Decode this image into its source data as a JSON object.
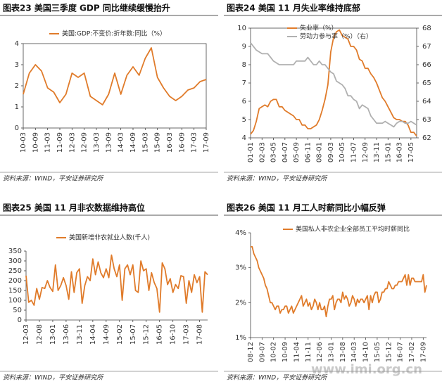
{
  "chart_data": [
    {
      "type": "line",
      "title": "图表23  美国三季度 GDP 同比继续缓慢抬升",
      "source": "资料来源：WIND，平安证券研究所",
      "categories": [
        "10-03",
        null,
        "10-09",
        null,
        "11-03",
        null,
        "11-09",
        null,
        "12-03",
        null,
        "12-09",
        null,
        "13-03",
        null,
        "13-09",
        null,
        "14-03",
        null,
        "14-09",
        null,
        "15-03",
        null,
        "15-09",
        null,
        "16-03",
        null,
        "16-09",
        null,
        "17-03",
        null,
        "17-09"
      ],
      "series": [
        {
          "name": "美国:GDP:不变价:折年数:同比（%）",
          "color": "#e07b2a",
          "values": [
            1.6,
            2.6,
            3.0,
            2.7,
            1.9,
            1.7,
            1.2,
            1.6,
            2.6,
            2.4,
            2.6,
            1.5,
            1.3,
            1.1,
            1.6,
            2.6,
            1.6,
            2.5,
            2.9,
            2.5,
            3.3,
            3.8,
            2.4,
            1.9,
            1.5,
            1.3,
            1.5,
            1.8,
            1.9,
            2.2,
            2.3
          ]
        }
      ],
      "ylim": [
        0,
        4
      ],
      "yticks": [
        0,
        1,
        2,
        3,
        4
      ]
    },
    {
      "type": "line",
      "title": "图表24  美国 11 月失业率维持底部",
      "source": "资料来源：WIND，平安证券研究所",
      "categories": [
        "01-01",
        null,
        null,
        null,
        "02-03",
        null,
        null,
        null,
        "03-05",
        null,
        null,
        null,
        "04-07",
        null,
        null,
        null,
        "05-09",
        null,
        null,
        null,
        "06-11",
        null,
        null,
        null,
        "08-01",
        null,
        null,
        null,
        "09-03",
        null,
        null,
        null,
        "10-05",
        null,
        null,
        null,
        "11-07",
        null,
        null,
        null,
        "12-09",
        null,
        null,
        null,
        "13-11",
        null,
        null,
        null,
        "15-01",
        null,
        null,
        null,
        "16-03",
        null,
        null,
        null,
        "17-05",
        null,
        null
      ],
      "series": [
        {
          "name": "失业率（%）",
          "color": "#e07b2a",
          "values": [
            4.2,
            4.4,
            4.9,
            5.6,
            5.7,
            5.8,
            5.7,
            6.0,
            6.1,
            6.1,
            5.7,
            5.7,
            5.5,
            5.4,
            5.3,
            5.2,
            5.0,
            5.0,
            4.7,
            4.7,
            4.5,
            4.5,
            4.6,
            4.7,
            5.0,
            5.5,
            6.1,
            6.9,
            8.7,
            9.5,
            9.8,
            9.9,
            9.6,
            9.5,
            9.4,
            9.0,
            9.0,
            8.8,
            8.3,
            8.2,
            7.8,
            7.8,
            7.5,
            7.3,
            7.0,
            6.6,
            6.2,
            6.0,
            5.7,
            5.4,
            5.1,
            5.0,
            5.0,
            4.9,
            4.9,
            4.7,
            4.3,
            4.3,
            4.1
          ]
        },
        {
          "name": "劳动力参与率（%）（右）",
          "color": "#b0b0b0",
          "axis": "y2",
          "values": [
            67.2,
            67.0,
            66.8,
            66.7,
            66.6,
            66.6,
            66.6,
            66.4,
            66.2,
            66.1,
            66.0,
            66.0,
            66.0,
            66.0,
            66.0,
            66.0,
            66.2,
            66.2,
            66.2,
            66.2,
            66.4,
            66.2,
            66.0,
            66.0,
            66.2,
            66.0,
            66.0,
            65.8,
            65.6,
            65.5,
            65.1,
            65.0,
            64.9,
            64.7,
            64.3,
            64.3,
            64.1,
            64.0,
            63.6,
            63.8,
            63.7,
            63.6,
            63.2,
            63.0,
            62.8,
            62.8,
            62.8,
            62.9,
            62.8,
            62.7,
            62.6,
            62.8,
            62.9,
            62.9,
            62.8,
            62.8,
            62.9,
            62.8,
            62.7
          ]
        }
      ],
      "ylim": [
        4,
        10
      ],
      "yticks": [
        4,
        5,
        6,
        7,
        8,
        9,
        10
      ],
      "y2lim": [
        62,
        68
      ],
      "y2ticks": [
        62,
        63,
        64,
        65,
        66,
        67,
        68
      ]
    },
    {
      "type": "line",
      "title": "图表25  美国 11 月非农数据维持高位",
      "source": "资料来源：WIND，平安证券研究所",
      "categories": [
        "12-03",
        null,
        null,
        null,
        null,
        "12-08",
        null,
        null,
        null,
        null,
        "13-01",
        null,
        null,
        null,
        null,
        "13-06",
        null,
        null,
        null,
        null,
        "13-11",
        null,
        null,
        null,
        null,
        "14-04",
        null,
        null,
        null,
        null,
        "14-09",
        null,
        null,
        null,
        null,
        "15-02",
        null,
        null,
        null,
        null,
        "15-07",
        null,
        null,
        null,
        null,
        "15-12",
        null,
        null,
        null,
        null,
        "16-05",
        null,
        null,
        null,
        null,
        "16-10",
        null,
        null,
        null,
        null,
        "17-03",
        null,
        null,
        null,
        null,
        "17-08",
        null,
        null,
        null
      ],
      "series": [
        {
          "name": "美国新增非农就业人数(千人)",
          "color": "#e07b2a",
          "values": [
            225,
            90,
            100,
            75,
            160,
            105,
            165,
            160,
            200,
            165,
            145,
            280,
            150,
            175,
            215,
            175,
            105,
            245,
            140,
            240,
            260,
            85,
            175,
            220,
            200,
            310,
            230,
            295,
            240,
            215,
            260,
            215,
            330,
            260,
            220,
            280,
            100,
            260,
            280,
            230,
            280,
            150,
            140,
            300,
            250,
            260,
            150,
            240,
            190,
            160,
            40,
            290,
            260,
            180,
            210,
            140,
            180,
            160,
            225,
            220,
            85,
            200,
            140,
            230,
            190,
            220,
            40,
            245,
            230
          ]
        }
      ],
      "ylim": [
        0,
        350
      ],
      "yticks": [
        0,
        50,
        100,
        150,
        200,
        250,
        300,
        350
      ]
    },
    {
      "type": "line",
      "title": "图表26  美国 11 月工人时薪同比小幅反弹",
      "source": "资料来源：WIND，平安证券研究所",
      "categories": [
        "08-12",
        null,
        null,
        null,
        null,
        null,
        null,
        "09-07",
        null,
        null,
        null,
        null,
        null,
        null,
        "10-02",
        null,
        null,
        null,
        null,
        null,
        null,
        "10-09",
        null,
        null,
        null,
        null,
        null,
        null,
        "11-04",
        null,
        null,
        null,
        null,
        null,
        null,
        "11-11",
        null,
        null,
        null,
        null,
        null,
        null,
        "12-06",
        null,
        null,
        null,
        null,
        null,
        null,
        "13-01",
        null,
        null,
        null,
        null,
        null,
        null,
        "13-08",
        null,
        null,
        null,
        null,
        null,
        null,
        "14-03",
        null,
        null,
        null,
        null,
        null,
        null,
        "14-10",
        null,
        null,
        null,
        null,
        null,
        null,
        "15-05",
        null,
        null,
        null,
        null,
        null,
        null,
        "15-12",
        null,
        null,
        null,
        null,
        null,
        null,
        "16-07",
        null,
        null,
        null,
        null,
        null,
        null,
        "17-02",
        null,
        null,
        null,
        null,
        null,
        null,
        "17-09",
        null,
        null
      ],
      "series": [
        {
          "name": "美国私人非农企业全部员工平均时薪同比",
          "color": "#e07b2a",
          "values": [
            3.6,
            3.6,
            3.4,
            3.3,
            3.2,
            3.0,
            2.9,
            2.8,
            2.7,
            2.5,
            2.4,
            2.2,
            2.0,
            2.0,
            1.9,
            1.8,
            1.9,
            1.9,
            1.7,
            1.8,
            1.8,
            1.9,
            1.9,
            1.7,
            1.8,
            1.9,
            1.7,
            1.8,
            1.9,
            2.0,
            2.1,
            2.2,
            1.9,
            2.0,
            2.1,
            1.9,
            2.0,
            1.8,
            1.9,
            2.1,
            2.0,
            1.8,
            2.0,
            1.8,
            1.8,
            1.9,
            1.6,
            1.9,
            2.1,
            2.1,
            2.2,
            1.8,
            2.0,
            2.1,
            2.1,
            2.0,
            2.3,
            2.1,
            2.2,
            2.1,
            1.9,
            2.0,
            2.2,
            2.1,
            1.9,
            2.1,
            2.0,
            2.1,
            2.1,
            2.0,
            2.1,
            2.2,
            1.8,
            2.2,
            2.0,
            2.2,
            2.3,
            2.3,
            2.0,
            2.1,
            2.3,
            2.3,
            2.4,
            2.4,
            2.6,
            2.5,
            2.4,
            2.4,
            2.5,
            2.5,
            2.6,
            2.6,
            2.6,
            2.7,
            2.8,
            2.5,
            2.8,
            2.5,
            2.7,
            2.7,
            2.6,
            2.6,
            2.6,
            2.6,
            2.6,
            2.8,
            2.3,
            2.5
          ]
        }
      ],
      "ylim": [
        1,
        4
      ],
      "yticks": [
        {
          "value": 1,
          "label": "1%"
        },
        {
          "value": 2,
          "label": "2%"
        },
        {
          "value": 3,
          "label": "3%"
        },
        {
          "value": 4,
          "label": "4%"
        }
      ]
    }
  ],
  "watermark": "www.imi.org.cn"
}
